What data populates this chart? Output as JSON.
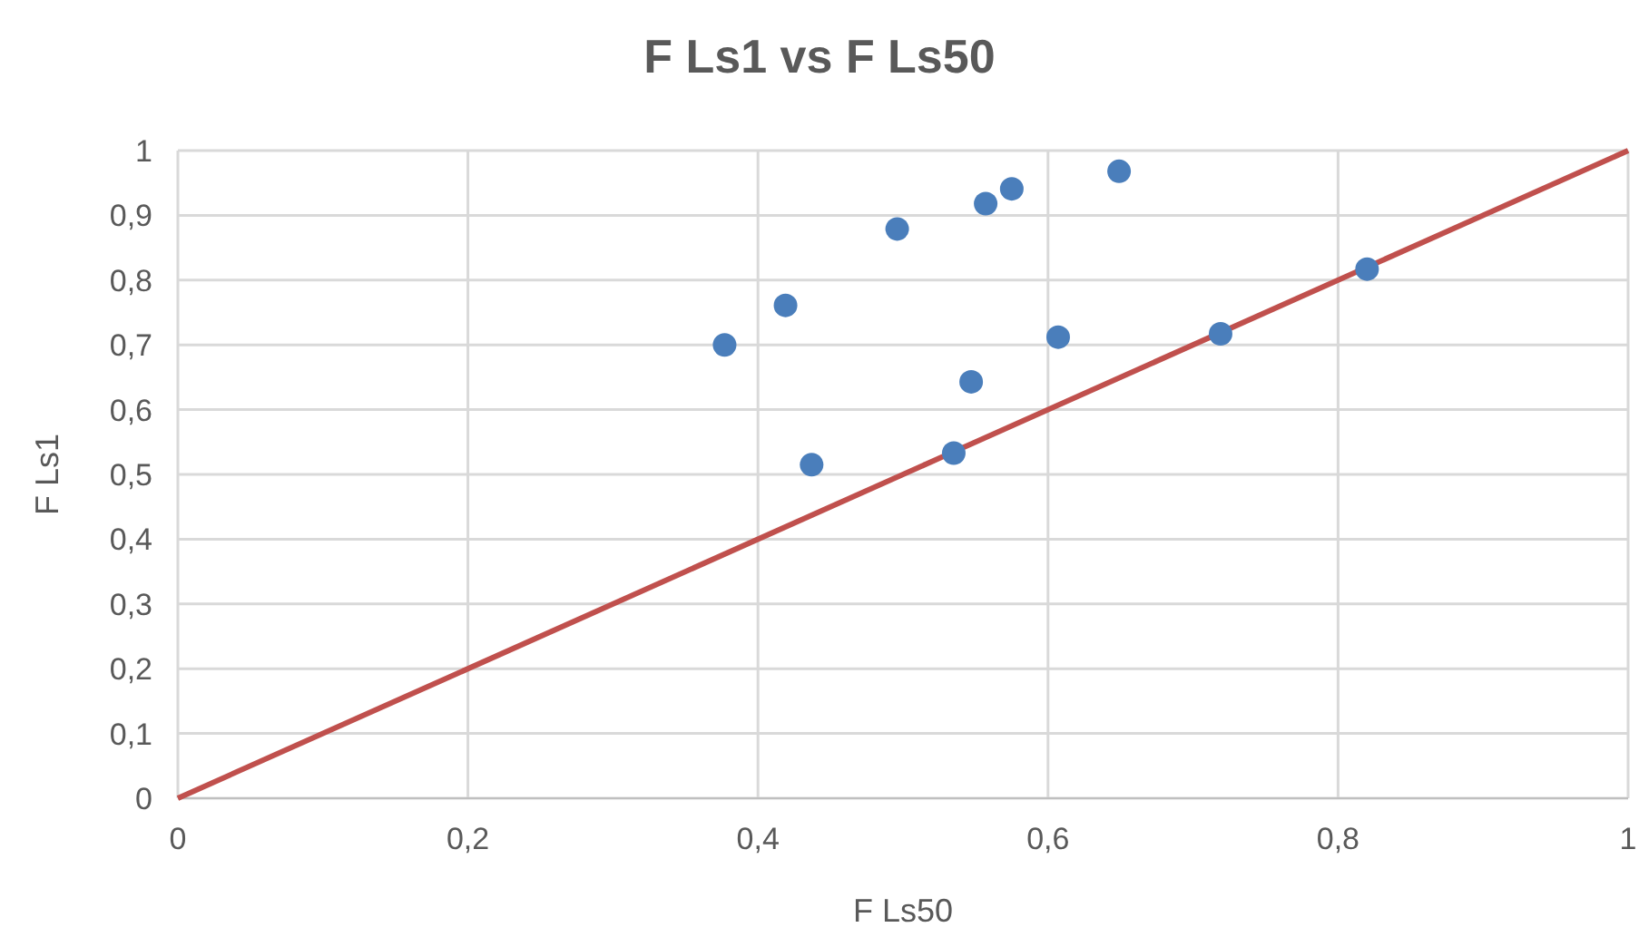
{
  "chart_data": {
    "type": "scatter",
    "title": "F Ls1 vs F Ls50",
    "xlabel": "F Ls50",
    "ylabel": "F Ls1",
    "series": [
      {
        "marker": "circle",
        "color": "#4a7ebb",
        "x": [
          0.377,
          0.419,
          0.437,
          0.496,
          0.535,
          0.547,
          0.557,
          0.575,
          0.607,
          0.649,
          0.719,
          0.82
        ],
        "values": [
          0.7,
          0.761,
          0.515,
          0.879,
          0.533,
          0.643,
          0.918,
          0.941,
          0.712,
          0.968,
          0.717,
          0.817
        ]
      },
      {
        "type": "line",
        "marker": "none",
        "color": "#c0504d",
        "x": [
          0,
          1
        ],
        "values": [
          0,
          1
        ]
      }
    ],
    "xlim": [
      0,
      1
    ],
    "ylim": [
      0,
      1
    ],
    "xticks": [
      {
        "value": 0,
        "label": "0"
      },
      {
        "value": 0.2,
        "label": "0,2"
      },
      {
        "value": 0.4,
        "label": "0,4"
      },
      {
        "value": 0.6,
        "label": "0,6"
      },
      {
        "value": 0.8,
        "label": "0,8"
      },
      {
        "value": 1,
        "label": "1"
      }
    ],
    "yticks": [
      {
        "value": 0,
        "label": "0"
      },
      {
        "value": 0.1,
        "label": "0,1"
      },
      {
        "value": 0.2,
        "label": "0,2"
      },
      {
        "value": 0.3,
        "label": "0,3"
      },
      {
        "value": 0.4,
        "label": "0,4"
      },
      {
        "value": 0.5,
        "label": "0,5"
      },
      {
        "value": 0.6,
        "label": "0,6"
      },
      {
        "value": 0.7,
        "label": "0,7"
      },
      {
        "value": 0.8,
        "label": "0,8"
      },
      {
        "value": 0.9,
        "label": "0,9"
      },
      {
        "value": 1,
        "label": "1"
      }
    ],
    "grid": true,
    "line_style": "solid"
  }
}
